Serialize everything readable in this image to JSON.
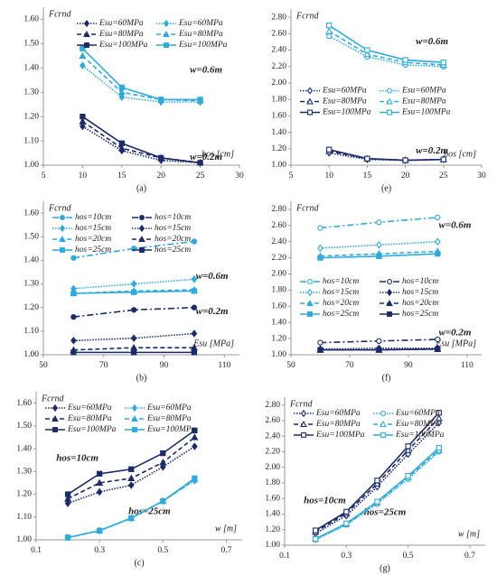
{
  "chart_data": [
    {
      "type": "line",
      "panel_label": "(a)",
      "ylabel": "Fcrnd",
      "xlabel": "hos [cm]",
      "x": [
        10,
        15,
        20,
        25
      ],
      "xlim": [
        5,
        30
      ],
      "xticks": [
        5,
        10,
        15,
        20,
        25,
        30
      ],
      "ylim": [
        1.0,
        1.65
      ],
      "yticks": [
        {
          "value": 1.0,
          "label": "1.00"
        },
        {
          "value": 1.1,
          "label": "1.10"
        },
        {
          "value": 1.2,
          "label": "1.20"
        },
        {
          "value": 1.3,
          "label": "1.30"
        },
        {
          "value": 1.4,
          "label": "1.40"
        },
        {
          "value": 1.5,
          "label": "1.50"
        },
        {
          "value": 1.6,
          "label": "1.60"
        }
      ],
      "legend_loc": "upper right",
      "legend_columns": 2,
      "annotations": [
        "w=0.6m",
        "w=0.2m"
      ],
      "series": [
        {
          "name": "Esu=60MPa",
          "color": "#1b2a6b",
          "marker": "diamond",
          "dash": "dotted",
          "filled": true,
          "values": [
            1.16,
            1.06,
            1.02,
            1.01
          ]
        },
        {
          "name": "Esu=80MPa",
          "color": "#1b2a6b",
          "marker": "triangle",
          "dash": "dashed",
          "filled": true,
          "values": [
            1.18,
            1.07,
            1.03,
            1.01
          ]
        },
        {
          "name": "Esu=100MPa",
          "color": "#1b2a6b",
          "marker": "square",
          "dash": "solid",
          "filled": true,
          "values": [
            1.2,
            1.09,
            1.03,
            1.01
          ]
        },
        {
          "name": "Esu=60MPa",
          "color": "#2eaadc",
          "marker": "diamond",
          "dash": "dotted",
          "filled": true,
          "values": [
            1.41,
            1.28,
            1.26,
            1.26
          ]
        },
        {
          "name": "Esu=80MPa",
          "color": "#2eaadc",
          "marker": "triangle",
          "dash": "dashed",
          "filled": true,
          "values": [
            1.45,
            1.3,
            1.27,
            1.265
          ]
        },
        {
          "name": "Esu=100MPa",
          "color": "#2eaadc",
          "marker": "square",
          "dash": "solid",
          "filled": true,
          "values": [
            1.48,
            1.32,
            1.27,
            1.27
          ]
        }
      ]
    },
    {
      "type": "line",
      "panel_label": "(e)",
      "ylabel": "Fcrnd",
      "xlabel": "hos [cm]",
      "x": [
        10,
        15,
        20,
        25
      ],
      "xlim": [
        5,
        30
      ],
      "xticks": [
        5,
        10,
        15,
        20,
        25,
        30
      ],
      "ylim": [
        1.0,
        2.9
      ],
      "yticks": [
        {
          "value": 1.0,
          "label": "1.00"
        },
        {
          "value": 1.2,
          "label": "1.20"
        },
        {
          "value": 1.4,
          "label": "1.40"
        },
        {
          "value": 1.6,
          "label": "1.60"
        },
        {
          "value": 1.8,
          "label": "1.80"
        },
        {
          "value": 2.0,
          "label": "2.00"
        },
        {
          "value": 2.2,
          "label": "2.20"
        },
        {
          "value": 2.4,
          "label": "2.40"
        },
        {
          "value": 2.6,
          "label": "2.60"
        },
        {
          "value": 2.8,
          "label": "2.80"
        }
      ],
      "legend_loc": "center left",
      "legend_columns": 2,
      "annotations": [
        "w=0.6m",
        "w=0.2m"
      ],
      "series": [
        {
          "name": "Esu=60MPa",
          "color": "#1b2a6b",
          "marker": "diamond",
          "dash": "dotted",
          "filled": false,
          "values": [
            1.15,
            1.07,
            1.06,
            1.07
          ]
        },
        {
          "name": "Esu=80MPa",
          "color": "#1b2a6b",
          "marker": "triangle",
          "dash": "dashed",
          "filled": false,
          "values": [
            1.17,
            1.08,
            1.06,
            1.07
          ]
        },
        {
          "name": "Esu=100MPa",
          "color": "#1b2a6b",
          "marker": "square",
          "dash": "solid",
          "filled": false,
          "values": [
            1.19,
            1.08,
            1.06,
            1.07
          ]
        },
        {
          "name": "Esu=60MPa",
          "color": "#2eaadc",
          "marker": "circle",
          "dash": "dotted",
          "filled": false,
          "values": [
            2.57,
            2.32,
            2.22,
            2.2
          ]
        },
        {
          "name": "Esu=80MPa",
          "color": "#2eaadc",
          "marker": "triangle",
          "dash": "dashed",
          "filled": false,
          "values": [
            2.63,
            2.35,
            2.25,
            2.22
          ]
        },
        {
          "name": "Esu=100MPa",
          "color": "#2eaadc",
          "marker": "square",
          "dash": "solid",
          "filled": false,
          "values": [
            2.7,
            2.4,
            2.28,
            2.25
          ]
        }
      ]
    },
    {
      "type": "line",
      "panel_label": "(b)",
      "ylabel": "Fcrnd",
      "xlabel": "Esu [MPa]",
      "x": [
        60,
        80,
        100
      ],
      "xlim": [
        50,
        115
      ],
      "xticks": [
        50,
        70,
        90,
        110
      ],
      "ylim": [
        1.0,
        1.65
      ],
      "yticks": [
        {
          "value": 1.0,
          "label": "1.00"
        },
        {
          "value": 1.1,
          "label": "1.10"
        },
        {
          "value": 1.2,
          "label": "1.20"
        },
        {
          "value": 1.3,
          "label": "1.30"
        },
        {
          "value": 1.4,
          "label": "1.40"
        },
        {
          "value": 1.5,
          "label": "1.50"
        },
        {
          "value": 1.6,
          "label": "1.60"
        }
      ],
      "legend_loc": "upper left",
      "legend_columns": 2,
      "annotations": [
        "w=0.6m",
        "w=0.2m"
      ],
      "series": [
        {
          "name": "hos=10cm",
          "color": "#2eaadc",
          "marker": "circle",
          "dash": "dashdot",
          "filled": true,
          "values": [
            1.41,
            1.45,
            1.48
          ]
        },
        {
          "name": "hos=15cm",
          "color": "#2eaadc",
          "marker": "diamond",
          "dash": "dotted",
          "filled": true,
          "values": [
            1.28,
            1.3,
            1.32
          ]
        },
        {
          "name": "hos=20cm",
          "color": "#2eaadc",
          "marker": "triangle",
          "dash": "dashed",
          "filled": true,
          "values": [
            1.26,
            1.27,
            1.275
          ]
        },
        {
          "name": "hos=25cm",
          "color": "#2eaadc",
          "marker": "square",
          "dash": "solid",
          "filled": true,
          "values": [
            1.26,
            1.265,
            1.27
          ]
        },
        {
          "name": "hos=10cm",
          "color": "#1b2a6b",
          "marker": "circle",
          "dash": "dashdot",
          "filled": true,
          "values": [
            1.16,
            1.19,
            1.2
          ]
        },
        {
          "name": "hos=15cm",
          "color": "#1b2a6b",
          "marker": "diamond",
          "dash": "dotted",
          "filled": true,
          "values": [
            1.06,
            1.07,
            1.09
          ]
        },
        {
          "name": "hos=20cm",
          "color": "#1b2a6b",
          "marker": "triangle",
          "dash": "dashed",
          "filled": true,
          "values": [
            1.02,
            1.03,
            1.03
          ]
        },
        {
          "name": "hos=25cm",
          "color": "#1b2a6b",
          "marker": "square",
          "dash": "solid",
          "filled": true,
          "values": [
            1.01,
            1.01,
            1.01
          ]
        }
      ]
    },
    {
      "type": "line",
      "panel_label": "(f)",
      "ylabel": "Fcrnd",
      "xlabel": "Esu [MPa]",
      "x": [
        60,
        80,
        100
      ],
      "xlim": [
        50,
        115
      ],
      "xticks": [
        50,
        70,
        90,
        110
      ],
      "ylim": [
        1.0,
        2.9
      ],
      "yticks": [
        {
          "value": 1.0,
          "label": "1.00"
        },
        {
          "value": 1.2,
          "label": "1.20"
        },
        {
          "value": 1.4,
          "label": "1.40"
        },
        {
          "value": 1.6,
          "label": "1.60"
        },
        {
          "value": 1.8,
          "label": "1.80"
        },
        {
          "value": 2.0,
          "label": "2.00"
        },
        {
          "value": 2.2,
          "label": "2.20"
        },
        {
          "value": 2.4,
          "label": "2.40"
        },
        {
          "value": 2.6,
          "label": "2.60"
        },
        {
          "value": 2.8,
          "label": "2.80"
        }
      ],
      "legend_loc": "center left",
      "legend_columns": 2,
      "annotations": [
        "w=0.6m",
        "w=0.2m"
      ],
      "series": [
        {
          "name": "hos=10cm",
          "color": "#2eaadc",
          "marker": "circle",
          "dash": "dashdot",
          "filled": false,
          "values": [
            2.57,
            2.64,
            2.7
          ]
        },
        {
          "name": "hos=15cm",
          "color": "#2eaadc",
          "marker": "diamond",
          "dash": "dotted",
          "filled": false,
          "values": [
            2.32,
            2.36,
            2.4
          ]
        },
        {
          "name": "hos=20cm",
          "color": "#2eaadc",
          "marker": "triangle",
          "dash": "dashed",
          "filled": true,
          "values": [
            2.22,
            2.25,
            2.28
          ]
        },
        {
          "name": "hos=25cm",
          "color": "#2eaadc",
          "marker": "square",
          "dash": "solid",
          "filled": true,
          "values": [
            2.2,
            2.22,
            2.25
          ]
        },
        {
          "name": "hos=10cm",
          "color": "#1b2a6b",
          "marker": "circle",
          "dash": "dashdot",
          "filled": false,
          "values": [
            1.15,
            1.17,
            1.19
          ]
        },
        {
          "name": "hos=15cm",
          "color": "#1b2a6b",
          "marker": "diamond",
          "dash": "dotted",
          "filled": true,
          "values": [
            1.07,
            1.08,
            1.08
          ]
        },
        {
          "name": "hos=20cm",
          "color": "#1b2a6b",
          "marker": "triangle",
          "dash": "dashed",
          "filled": true,
          "values": [
            1.06,
            1.06,
            1.07
          ]
        },
        {
          "name": "hos=25cm",
          "color": "#1b2a6b",
          "marker": "square",
          "dash": "solid",
          "filled": true,
          "values": [
            1.06,
            1.06,
            1.07
          ]
        }
      ]
    },
    {
      "type": "line",
      "panel_label": "(c)",
      "ylabel": "Fcrnd",
      "xlabel": "w [m]",
      "x": [
        0.2,
        0.3,
        0.4,
        0.5,
        0.6
      ],
      "xlim": [
        0.1,
        0.75
      ],
      "xticks": [
        0.1,
        0.3,
        0.5,
        0.7
      ],
      "ylim": [
        1.0,
        1.65
      ],
      "yticks": [
        {
          "value": 1.0,
          "label": "1.00"
        },
        {
          "value": 1.1,
          "label": "1.10"
        },
        {
          "value": 1.2,
          "label": "1.20"
        },
        {
          "value": 1.3,
          "label": "1.30"
        },
        {
          "value": 1.4,
          "label": "1.40"
        },
        {
          "value": 1.5,
          "label": "1.50"
        },
        {
          "value": 1.6,
          "label": "1.60"
        }
      ],
      "legend_loc": "upper left",
      "legend_columns": 2,
      "annotations": [
        "hos=10cm",
        "hos=25cm"
      ],
      "series": [
        {
          "name": "Esu=60MPa",
          "color": "#1b2a6b",
          "marker": "diamond",
          "dash": "dotted",
          "filled": true,
          "values": [
            1.16,
            1.21,
            1.24,
            1.32,
            1.41
          ]
        },
        {
          "name": "Esu=80MPa",
          "color": "#1b2a6b",
          "marker": "triangle",
          "dash": "dashed",
          "filled": true,
          "values": [
            1.18,
            1.25,
            1.27,
            1.34,
            1.45
          ]
        },
        {
          "name": "Esu=100MPa",
          "color": "#1b2a6b",
          "marker": "square",
          "dash": "solid",
          "filled": true,
          "values": [
            1.2,
            1.29,
            1.31,
            1.38,
            1.48
          ]
        },
        {
          "name": "Esu=60MPa",
          "color": "#2eaadc",
          "marker": "diamond",
          "dash": "dotted",
          "filled": true,
          "values": [
            1.01,
            1.04,
            1.095,
            1.17,
            1.26
          ]
        },
        {
          "name": "Esu=80MPa",
          "color": "#2eaadc",
          "marker": "triangle",
          "dash": "dashed",
          "filled": true,
          "values": [
            1.01,
            1.04,
            1.095,
            1.17,
            1.265
          ]
        },
        {
          "name": "Esu=100MPa",
          "color": "#2eaadc",
          "marker": "square",
          "dash": "solid",
          "filled": true,
          "values": [
            1.01,
            1.04,
            1.095,
            1.17,
            1.27
          ]
        }
      ]
    },
    {
      "type": "line",
      "panel_label": "(g)",
      "ylabel": "Fcrnd",
      "xlabel": "w [m]",
      "x": [
        0.2,
        0.3,
        0.4,
        0.5,
        0.6
      ],
      "xlim": [
        0.1,
        0.75
      ],
      "xticks": [
        0.1,
        0.3,
        0.5,
        0.7
      ],
      "ylim": [
        1.0,
        2.9
      ],
      "yticks": [
        {
          "value": 1.0,
          "label": "1.00"
        },
        {
          "value": 1.2,
          "label": "1.20"
        },
        {
          "value": 1.4,
          "label": "1.40"
        },
        {
          "value": 1.6,
          "label": "1.60"
        },
        {
          "value": 1.8,
          "label": "1.80"
        },
        {
          "value": 2.0,
          "label": "2.00"
        },
        {
          "value": 2.2,
          "label": "2.20"
        },
        {
          "value": 2.4,
          "label": "2.40"
        },
        {
          "value": 2.6,
          "label": "2.60"
        },
        {
          "value": 2.8,
          "label": "2.80"
        }
      ],
      "legend_loc": "upper left",
      "legend_columns": 2,
      "annotations": [
        "hos=10cm",
        "hos=25cm"
      ],
      "series": [
        {
          "name": "Esu=60MPa",
          "color": "#1b2a6b",
          "marker": "diamond",
          "dash": "dotted",
          "filled": false,
          "values": [
            1.15,
            1.38,
            1.75,
            2.17,
            2.57
          ]
        },
        {
          "name": "Esu=80MPa",
          "color": "#1b2a6b",
          "marker": "triangle",
          "dash": "dashed",
          "filled": false,
          "values": [
            1.17,
            1.41,
            1.79,
            2.22,
            2.63
          ]
        },
        {
          "name": "Esu=100MPa",
          "color": "#1b2a6b",
          "marker": "square",
          "dash": "solid",
          "filled": false,
          "values": [
            1.19,
            1.43,
            1.83,
            2.27,
            2.7
          ]
        },
        {
          "name": "Esu=60MPa",
          "color": "#2eaadc",
          "marker": "circle",
          "dash": "dotted",
          "filled": false,
          "values": [
            1.07,
            1.26,
            1.53,
            1.85,
            2.2
          ]
        },
        {
          "name": "Esu=80MPa",
          "color": "#2eaadc",
          "marker": "triangle",
          "dash": "dashed",
          "filled": false,
          "values": [
            1.08,
            1.27,
            1.55,
            1.87,
            2.22
          ]
        },
        {
          "name": "Esu=100MPa",
          "color": "#2eaadc",
          "marker": "square",
          "dash": "solid",
          "filled": false,
          "values": [
            1.08,
            1.28,
            1.56,
            1.89,
            2.25
          ]
        }
      ]
    }
  ]
}
